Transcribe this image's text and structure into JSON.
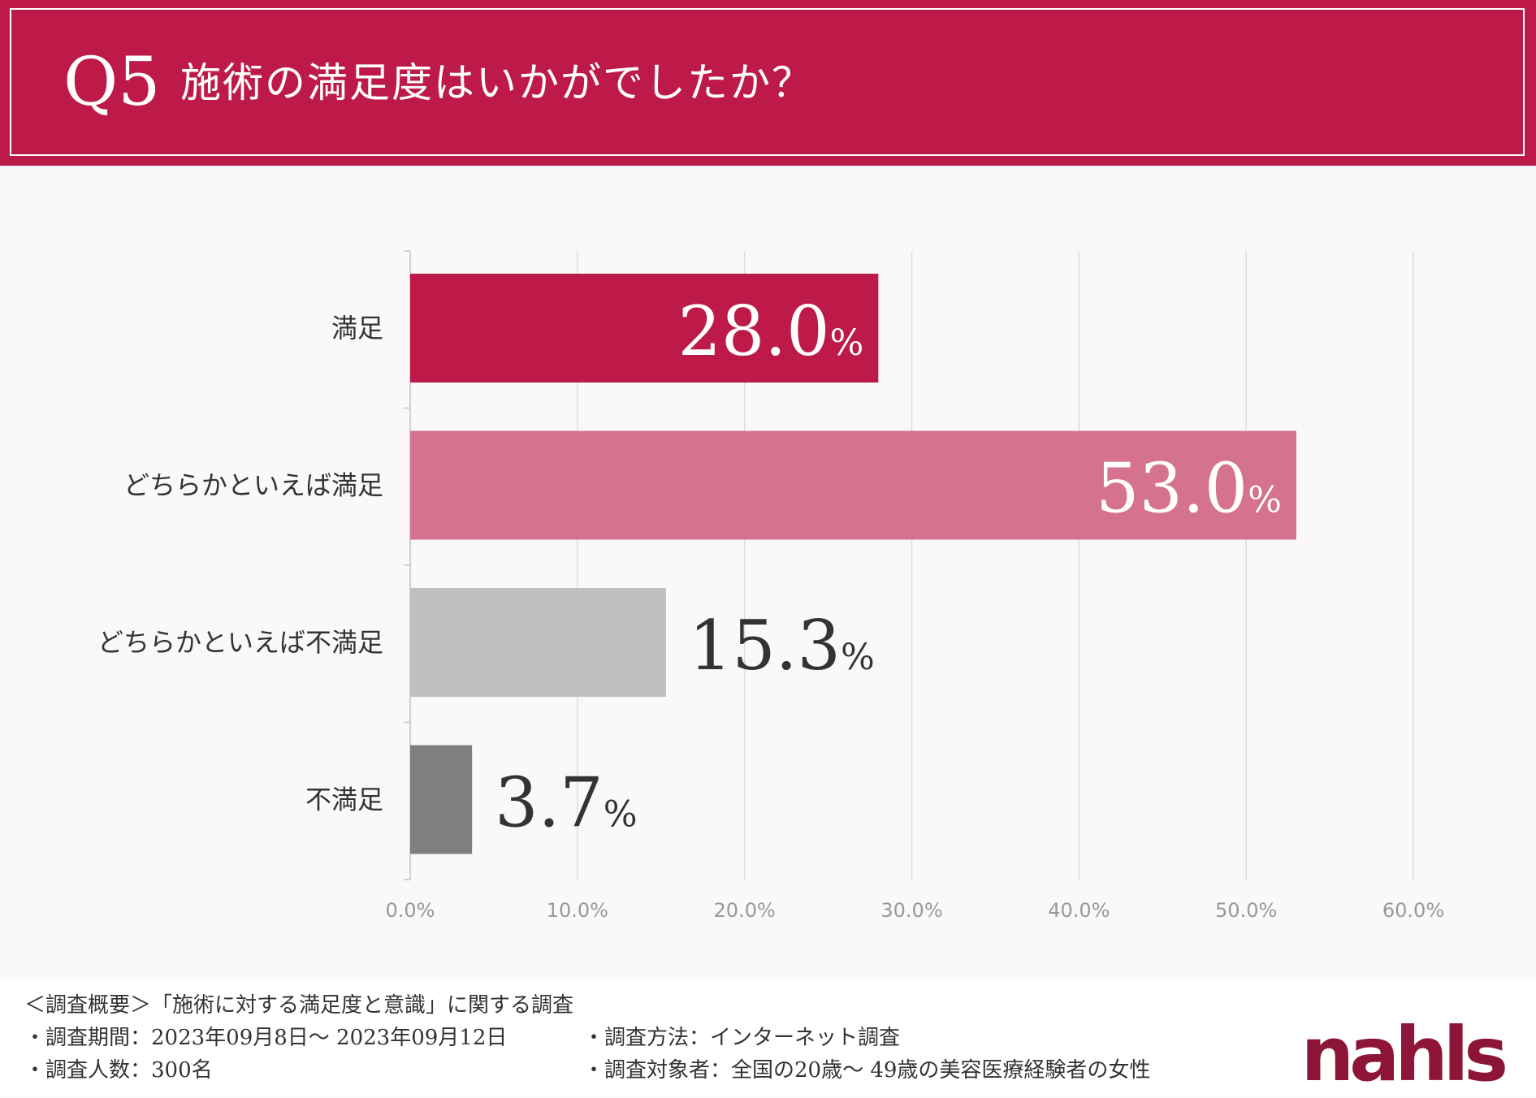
{
  "header": {
    "q_number": "Q5",
    "question": "施術の満足度はいかがでしたか？"
  },
  "chart_data": {
    "type": "bar",
    "orientation": "horizontal",
    "title": "施術の満足度はいかがでしたか？",
    "categories": [
      "満足",
      "どちらかといえば満足",
      "どちらかといえば不満足",
      "不満足"
    ],
    "values": [
      28.0,
      53.0,
      15.3,
      3.7
    ],
    "value_labels": [
      "28.0",
      "53.0",
      "15.3",
      "3.7"
    ],
    "unit": "%",
    "colors": [
      "#bd1a4a",
      "#d5738f",
      "#bfbfbf",
      "#7f7f7f"
    ],
    "label_colors": [
      "#ffffff",
      "#ffffff",
      "#333333",
      "#333333"
    ],
    "xlim": [
      0,
      60
    ],
    "xticks": [
      "0.0%",
      "10.0%",
      "20.0%",
      "30.0%",
      "40.0%",
      "50.0%",
      "60.0%"
    ],
    "grid": true,
    "xlabel": "",
    "ylabel": ""
  },
  "footer": {
    "summary": "＜調査概要＞「施術に対する満足度と意識」に関する調査",
    "period": "・調査期間：2023年09月8日〜 2023年09月12日",
    "count": "・調査人数：300名",
    "method": "・調査方法：インターネット調査",
    "target": "・調査対象者：全国の20歳〜 49歳の美容医療経験者の女性",
    "logo": "nahls"
  }
}
